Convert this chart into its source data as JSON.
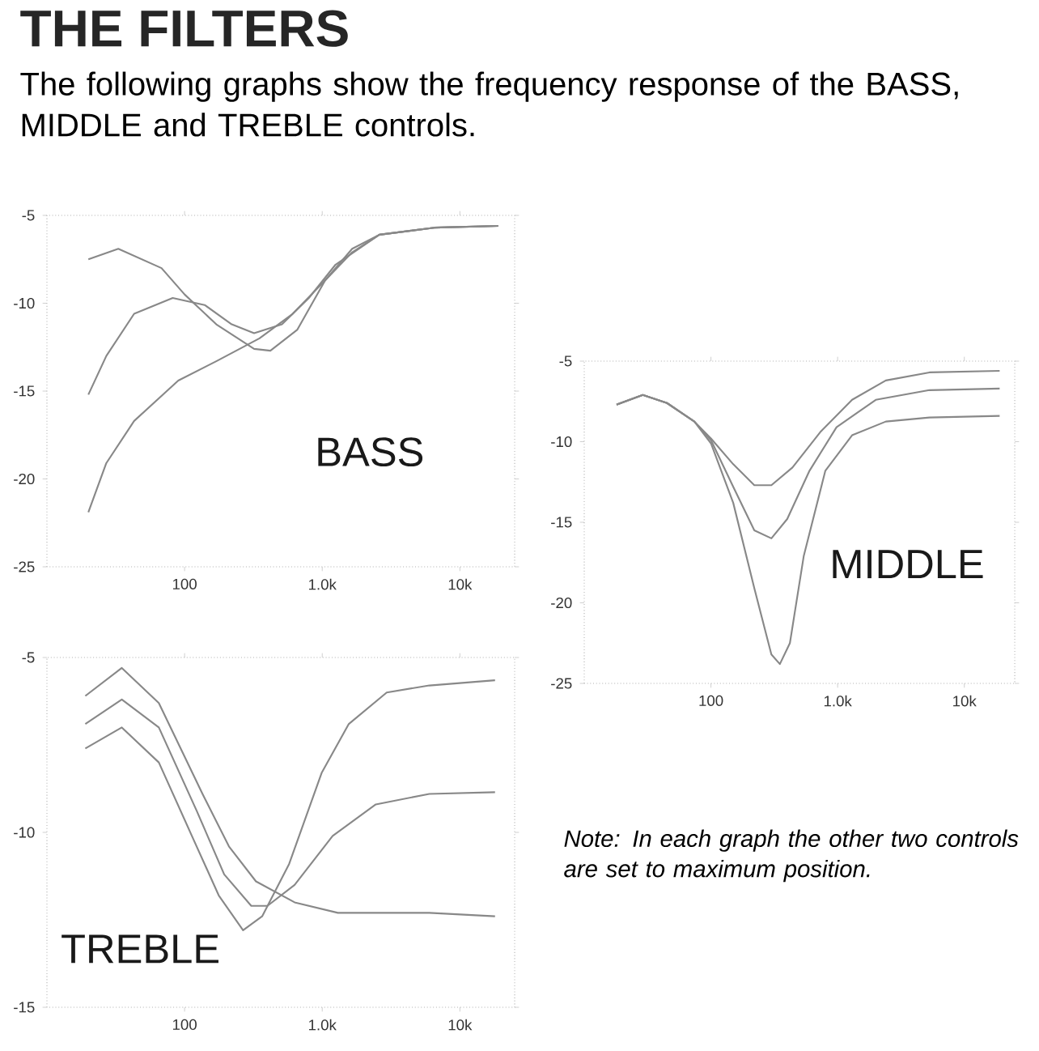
{
  "chart_data": [
    {
      "type": "other",
      "title": "THE FILTERS",
      "subtitle": "The following graphs show the frequency response of the BASS, MIDDLE and TREBLE controls.",
      "annotations": [
        "Note: In each graph the other two controls are set to maximum position."
      ]
    },
    {
      "type": "line",
      "title": "BASS",
      "log": "x",
      "xlim": [
        10,
        25000
      ],
      "ylim": [
        -25,
        -5
      ],
      "xticks": [
        {
          "value": 100,
          "label": "100"
        },
        {
          "value": 1000,
          "label": "1.0k"
        },
        {
          "value": 10000,
          "label": "10k"
        }
      ],
      "yticks": [
        -5,
        -10,
        -15,
        -20,
        -25
      ],
      "series": [
        {
          "color": "#888888",
          "x": [
            20,
            33,
            68,
            100,
            170,
            320,
            420,
            660,
            1050,
            1650,
            2600,
            6500,
            19000
          ],
          "values": [
            -7.5,
            -6.9,
            -8.0,
            -9.5,
            -11.2,
            -12.6,
            -12.7,
            -11.5,
            -8.7,
            -6.9,
            -6.1,
            -5.7,
            -5.6
          ]
        },
        {
          "color": "#888888",
          "x": [
            20,
            27,
            43,
            82,
            140,
            220,
            320,
            510,
            800,
            1250,
            2600,
            6500,
            19000
          ],
          "values": [
            -15.2,
            -13.0,
            -10.6,
            -9.7,
            -10.1,
            -11.2,
            -11.7,
            -11.2,
            -9.7,
            -7.8,
            -6.1,
            -5.7,
            -5.6
          ]
        },
        {
          "color": "#888888",
          "x": [
            20,
            27,
            43,
            90,
            170,
            350,
            610,
            1050,
            1650,
            2600,
            6500,
            19000
          ],
          "values": [
            -21.9,
            -19.1,
            -16.7,
            -14.4,
            -13.3,
            -12.0,
            -10.6,
            -8.7,
            -7.1,
            -6.1,
            -5.7,
            -5.6
          ]
        }
      ]
    },
    {
      "type": "line",
      "title": "MIDDLE",
      "log": "x",
      "xlim": [
        10,
        25000
      ],
      "ylim": [
        -25,
        -5
      ],
      "xticks": [
        {
          "value": 100,
          "label": "100"
        },
        {
          "value": 1000,
          "label": "1.0k"
        },
        {
          "value": 10000,
          "label": "10k"
        }
      ],
      "yticks": [
        -5,
        -10,
        -15,
        -20,
        -25
      ],
      "series": [
        {
          "color": "#888888",
          "x": [
            18,
            29,
            45,
            74,
            100,
            150,
            220,
            300,
            440,
            730,
            1300,
            2400,
            5300,
            19000
          ],
          "values": [
            -7.7,
            -7.1,
            -7.6,
            -8.75,
            -9.8,
            -11.4,
            -12.7,
            -12.7,
            -11.6,
            -9.4,
            -7.4,
            -6.2,
            -5.7,
            -5.6
          ]
        },
        {
          "color": "#888888",
          "x": [
            18,
            29,
            45,
            74,
            100,
            150,
            220,
            300,
            400,
            600,
            980,
            2000,
            5300,
            19000
          ],
          "values": [
            -7.7,
            -7.1,
            -7.6,
            -8.75,
            -9.9,
            -12.8,
            -15.5,
            -16.0,
            -14.8,
            -11.8,
            -9.1,
            -7.4,
            -6.8,
            -6.7
          ]
        },
        {
          "color": "#888888",
          "x": [
            18,
            29,
            45,
            74,
            100,
            150,
            220,
            300,
            350,
            420,
            540,
            800,
            1300,
            2400,
            5300,
            19000
          ],
          "values": [
            -7.7,
            -7.1,
            -7.6,
            -8.75,
            -10.1,
            -13.8,
            -19.1,
            -23.2,
            -23.8,
            -22.5,
            -17.1,
            -11.8,
            -9.6,
            -8.75,
            -8.5,
            -8.4
          ]
        }
      ]
    },
    {
      "type": "line",
      "title": "TREBLE",
      "log": "x",
      "xlim": [
        10,
        25000
      ],
      "ylim": [
        -15,
        -5
      ],
      "xticks": [
        {
          "value": 100,
          "label": "100"
        },
        {
          "value": 1000,
          "label": "1.0k"
        },
        {
          "value": 10000,
          "label": "10k"
        }
      ],
      "yticks": [
        -5,
        -10,
        -15
      ],
      "series": [
        {
          "color": "#888888",
          "x": [
            19,
            35,
            65,
            135,
            210,
            330,
            630,
            1300,
            6000,
            18000
          ],
          "values": [
            -6.1,
            -5.3,
            -6.3,
            -8.9,
            -10.4,
            -11.4,
            -12.0,
            -12.3,
            -12.3,
            -12.4
          ]
        },
        {
          "color": "#888888",
          "x": [
            19,
            35,
            65,
            123,
            194,
            305,
            400,
            630,
            1190,
            2450,
            6000,
            18000
          ],
          "values": [
            -6.9,
            -6.2,
            -7.0,
            -9.4,
            -11.2,
            -12.1,
            -12.1,
            -11.5,
            -10.1,
            -9.2,
            -8.9,
            -8.85
          ]
        },
        {
          "color": "#888888",
          "x": [
            19,
            35,
            65,
            113,
            177,
            266,
            366,
            575,
            990,
            1560,
            2940,
            6000,
            18000
          ],
          "values": [
            -7.6,
            -7.0,
            -8.0,
            -10.1,
            -11.8,
            -12.8,
            -12.4,
            -10.9,
            -8.3,
            -6.9,
            -6.0,
            -5.8,
            -5.65
          ]
        }
      ]
    }
  ]
}
